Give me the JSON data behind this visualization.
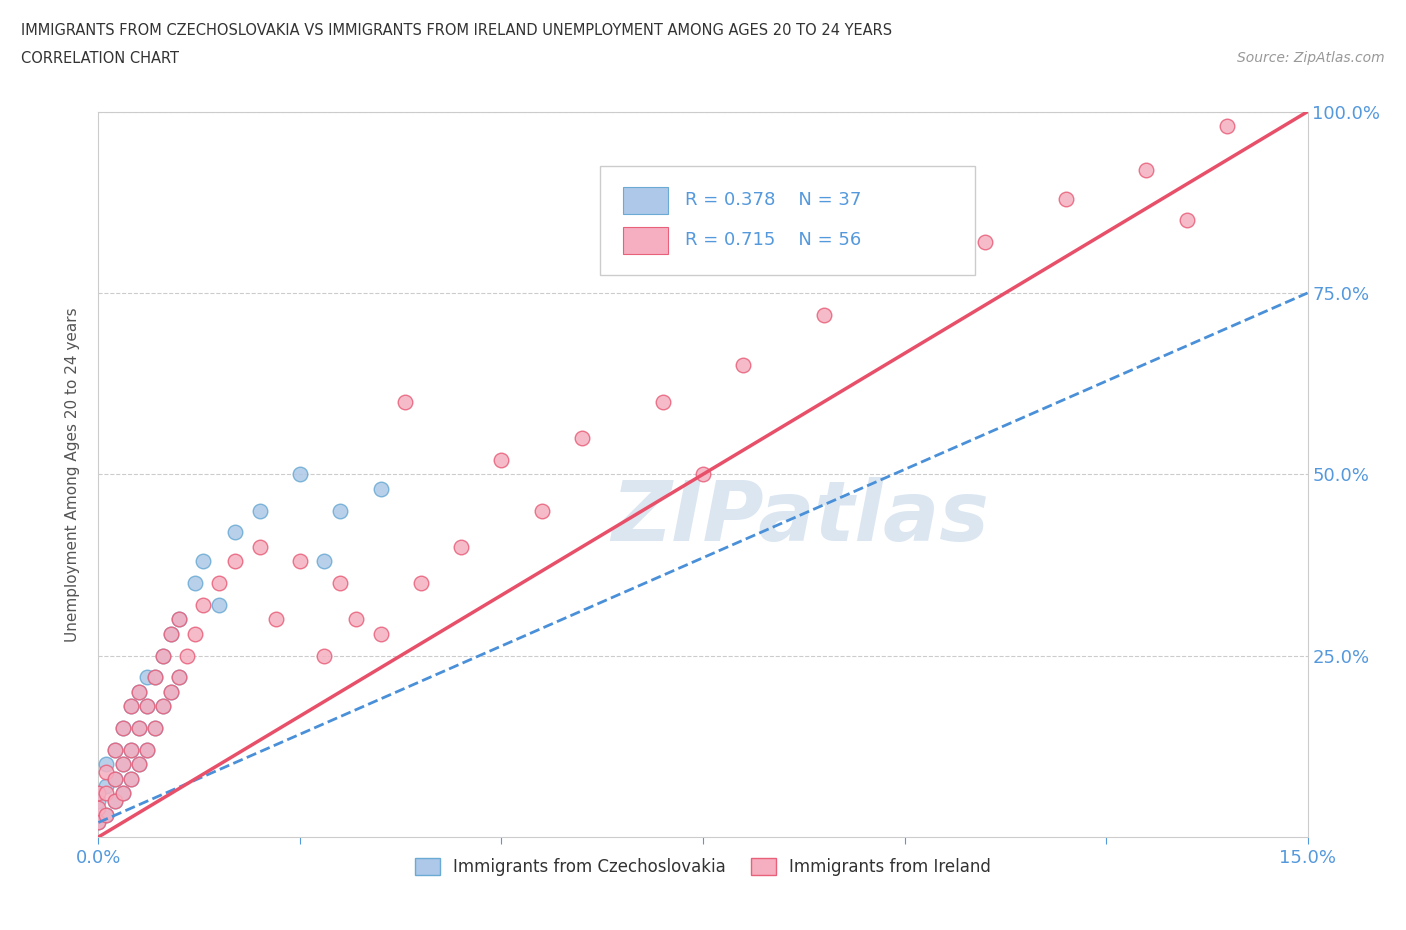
{
  "title_line1": "IMMIGRANTS FROM CZECHOSLOVAKIA VS IMMIGRANTS FROM IRELAND UNEMPLOYMENT AMONG AGES 20 TO 24 YEARS",
  "title_line2": "CORRELATION CHART",
  "source_text": "Source: ZipAtlas.com",
  "ylabel": "Unemployment Among Ages 20 to 24 years",
  "xlim": [
    0,
    0.15
  ],
  "ylim": [
    0,
    1.0
  ],
  "xticks": [
    0.0,
    0.025,
    0.05,
    0.075,
    0.1,
    0.125,
    0.15
  ],
  "xticklabels": [
    "0.0%",
    "",
    "",
    "",
    "",
    "",
    "15.0%"
  ],
  "yticks": [
    0.0,
    0.25,
    0.5,
    0.75,
    1.0
  ],
  "yticklabels_right": [
    "",
    "25.0%",
    "50.0%",
    "75.0%",
    "100.0%"
  ],
  "blue_color": "#adc8e8",
  "pink_color": "#f5afc0",
  "blue_edge_color": "#6aaad4",
  "pink_edge_color": "#e8607a",
  "blue_line_color": "#4a90d9",
  "pink_line_color": "#e8506a",
  "watermark": "ZIPatlas",
  "watermark_color": "#ccdcec",
  "blue_scatter_x": [
    0.0,
    0.0,
    0.001,
    0.001,
    0.001,
    0.002,
    0.002,
    0.002,
    0.003,
    0.003,
    0.003,
    0.004,
    0.004,
    0.004,
    0.005,
    0.005,
    0.005,
    0.006,
    0.006,
    0.006,
    0.007,
    0.007,
    0.008,
    0.008,
    0.009,
    0.009,
    0.01,
    0.01,
    0.012,
    0.013,
    0.015,
    0.017,
    0.02,
    0.025,
    0.028,
    0.03,
    0.035
  ],
  "blue_scatter_y": [
    0.02,
    0.05,
    0.03,
    0.07,
    0.1,
    0.05,
    0.08,
    0.12,
    0.06,
    0.1,
    0.15,
    0.08,
    0.12,
    0.18,
    0.1,
    0.15,
    0.2,
    0.12,
    0.18,
    0.22,
    0.15,
    0.22,
    0.18,
    0.25,
    0.2,
    0.28,
    0.22,
    0.3,
    0.35,
    0.38,
    0.32,
    0.42,
    0.45,
    0.5,
    0.38,
    0.45,
    0.48
  ],
  "pink_scatter_x": [
    0.0,
    0.0,
    0.0,
    0.001,
    0.001,
    0.001,
    0.002,
    0.002,
    0.002,
    0.003,
    0.003,
    0.003,
    0.004,
    0.004,
    0.004,
    0.005,
    0.005,
    0.005,
    0.006,
    0.006,
    0.007,
    0.007,
    0.008,
    0.008,
    0.009,
    0.009,
    0.01,
    0.01,
    0.011,
    0.012,
    0.013,
    0.015,
    0.017,
    0.02,
    0.022,
    0.025,
    0.028,
    0.03,
    0.032,
    0.035,
    0.038,
    0.04,
    0.045,
    0.05,
    0.055,
    0.06,
    0.07,
    0.075,
    0.08,
    0.09,
    0.1,
    0.11,
    0.12,
    0.13,
    0.135,
    0.14
  ],
  "pink_scatter_y": [
    0.02,
    0.04,
    0.06,
    0.03,
    0.06,
    0.09,
    0.05,
    0.08,
    0.12,
    0.06,
    0.1,
    0.15,
    0.08,
    0.12,
    0.18,
    0.1,
    0.15,
    0.2,
    0.12,
    0.18,
    0.15,
    0.22,
    0.18,
    0.25,
    0.2,
    0.28,
    0.22,
    0.3,
    0.25,
    0.28,
    0.32,
    0.35,
    0.38,
    0.4,
    0.3,
    0.38,
    0.25,
    0.35,
    0.3,
    0.28,
    0.6,
    0.35,
    0.4,
    0.52,
    0.45,
    0.55,
    0.6,
    0.5,
    0.65,
    0.72,
    0.8,
    0.82,
    0.88,
    0.92,
    0.85,
    0.98
  ],
  "blue_trend_x0": 0.0,
  "blue_trend_x1": 0.15,
  "blue_trend_y0": 0.02,
  "blue_trend_y1": 0.75,
  "pink_trend_x0": 0.0,
  "pink_trend_x1": 0.15,
  "pink_trend_y0": 0.0,
  "pink_trend_y1": 1.0,
  "legend_label1": "Immigrants from Czechoslovakia",
  "legend_label2": "Immigrants from Ireland",
  "grid_color": "#cccccc",
  "background_color": "#ffffff",
  "title_color": "#333333",
  "source_color": "#999999",
  "tick_color": "#5599dd"
}
